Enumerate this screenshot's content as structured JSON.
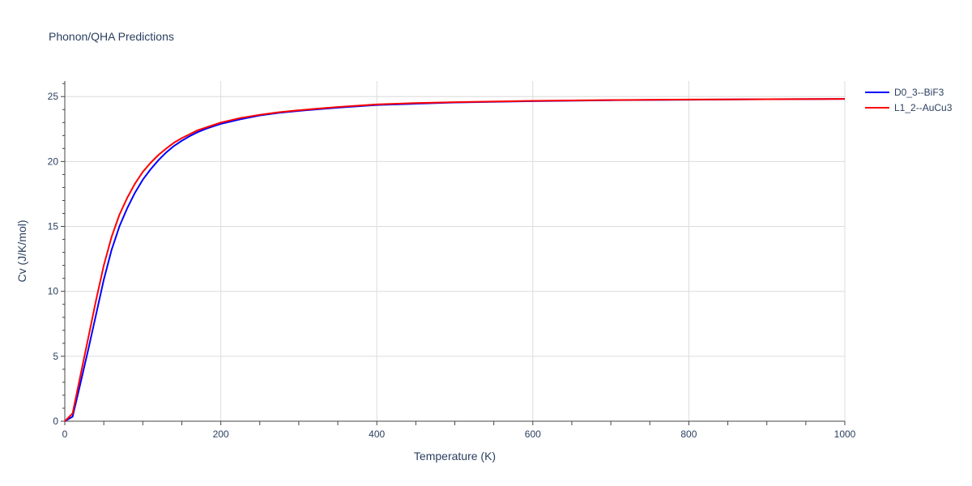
{
  "chart_data": {
    "type": "line",
    "title": "Phonon/QHA Predictions",
    "xlabel": "Temperature (K)",
    "ylabel": "Cv (J/K/mol)",
    "xlim": [
      0,
      1000
    ],
    "ylim": [
      0,
      26.2
    ],
    "x_ticks": [
      0,
      200,
      400,
      600,
      800,
      1000
    ],
    "y_ticks": [
      0,
      5,
      10,
      15,
      20,
      25
    ],
    "grid": true,
    "legend_position": "top-right",
    "series": [
      {
        "name": "D0_3--BiF3",
        "color": "#0000ff",
        "x": [
          0,
          10,
          20,
          30,
          40,
          50,
          60,
          70,
          80,
          90,
          100,
          110,
          120,
          130,
          140,
          150,
          160,
          170,
          180,
          190,
          200,
          225,
          250,
          275,
          300,
          350,
          400,
          450,
          500,
          600,
          700,
          800,
          900,
          1000
        ],
        "y": [
          0,
          0.35,
          2.9,
          5.5,
          8.2,
          10.9,
          13.2,
          15.0,
          16.4,
          17.6,
          18.6,
          19.4,
          20.1,
          20.7,
          21.2,
          21.6,
          21.95,
          22.25,
          22.5,
          22.7,
          22.9,
          23.25,
          23.55,
          23.75,
          23.9,
          24.15,
          24.35,
          24.45,
          24.55,
          24.65,
          24.72,
          24.76,
          24.8,
          24.82
        ]
      },
      {
        "name": "L1_2--AuCu3",
        "color": "#ff0000",
        "x": [
          0,
          10,
          20,
          30,
          40,
          50,
          60,
          70,
          80,
          90,
          100,
          110,
          120,
          130,
          140,
          150,
          160,
          170,
          180,
          190,
          200,
          225,
          250,
          275,
          300,
          350,
          400,
          450,
          500,
          600,
          700,
          800,
          900,
          1000
        ],
        "y": [
          0,
          0.6,
          3.5,
          6.4,
          9.3,
          12.0,
          14.2,
          15.9,
          17.2,
          18.3,
          19.2,
          19.9,
          20.5,
          21.0,
          21.45,
          21.8,
          22.1,
          22.4,
          22.6,
          22.8,
          23.0,
          23.35,
          23.6,
          23.8,
          23.95,
          24.2,
          24.4,
          24.5,
          24.57,
          24.67,
          24.73,
          24.77,
          24.8,
          24.82
        ]
      }
    ]
  }
}
